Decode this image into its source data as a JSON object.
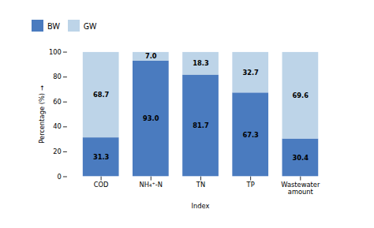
{
  "chart_data": {
    "type": "bar",
    "stacked": true,
    "categories": [
      "COD",
      "NH₄⁺-N",
      "TN",
      "TP",
      "Wastewater\namount"
    ],
    "series": [
      {
        "name": "BW",
        "color": "#4a7bbf",
        "values": [
          31.3,
          93.0,
          81.7,
          67.3,
          30.4
        ],
        "value_labels": [
          "31.3",
          "93.0",
          "81.7",
          "67.3",
          "30.4"
        ]
      },
      {
        "name": "GW",
        "color": "#bdd4e8",
        "values": [
          68.7,
          7.0,
          18.3,
          32.7,
          69.6
        ],
        "value_labels": [
          "68.7",
          "7.0",
          "18.3",
          "32.7",
          "69.6"
        ]
      }
    ],
    "xlabel": "Index",
    "ylabel": "Percentage (%)",
    "ylim": [
      0,
      100
    ],
    "yticks": [
      0,
      20,
      40,
      60,
      80,
      100
    ],
    "grid": false,
    "legend": "top",
    "data_labels": true
  }
}
